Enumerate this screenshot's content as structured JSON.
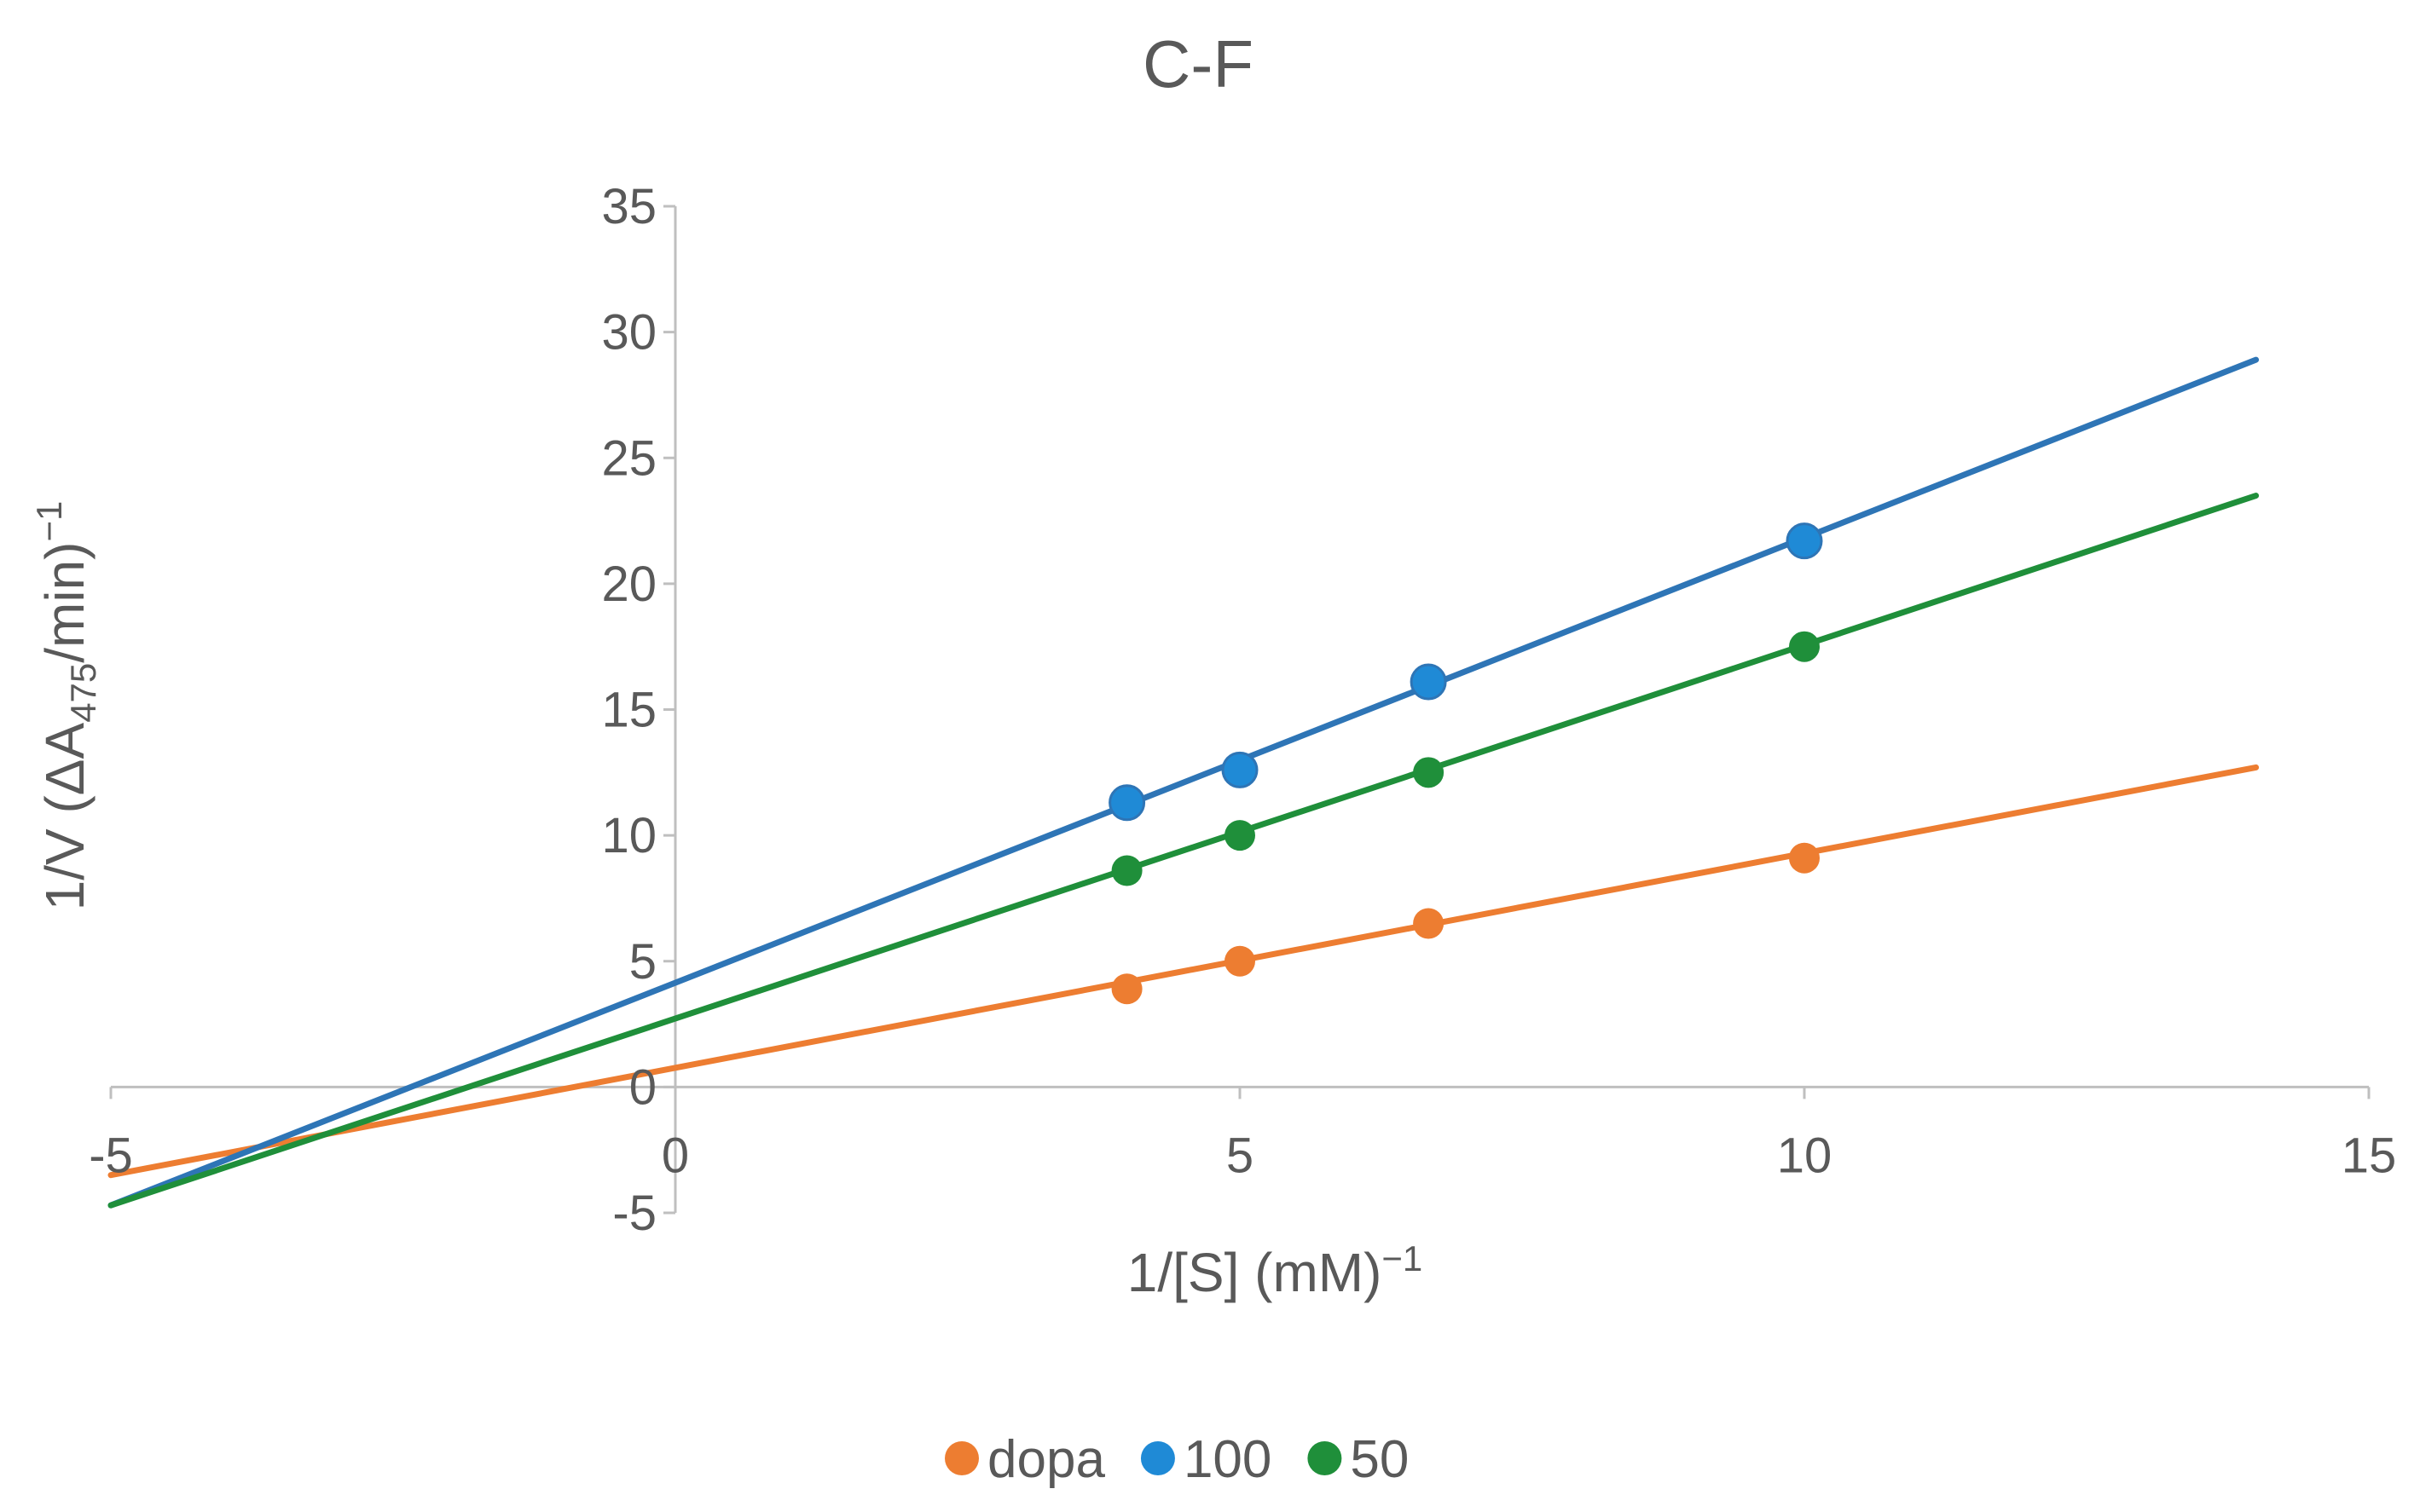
{
  "chart_data": {
    "type": "scatter",
    "title": "C-F",
    "xlabel": "1/[S]  (mM)",
    "xlabel_sup": "−1",
    "ylabel_pre": "1/V (ΔA",
    "ylabel_sub": "475",
    "ylabel_post": "/min)",
    "ylabel_sup": "−1",
    "xlim": [
      -5,
      15
    ],
    "ylim": [
      -5,
      35
    ],
    "xticks": [
      "-5",
      "0",
      "5",
      "10",
      "15"
    ],
    "yticks": [
      "-5",
      "0",
      "5",
      "10",
      "15",
      "20",
      "25",
      "30",
      "35"
    ],
    "grid": false,
    "legend_position": "bottom",
    "series": [
      {
        "name": "dopa",
        "color": "#ED7D31",
        "points": [
          [
            4,
            3.9
          ],
          [
            5,
            5.0
          ],
          [
            6.67,
            6.5
          ],
          [
            10,
            9.1
          ]
        ],
        "trendline": {
          "x": [
            -5,
            14
          ],
          "y": [
            -3.5,
            12.7
          ]
        }
      },
      {
        "name": "100",
        "color": "#2E75B6",
        "marker_color": "#1F8AD6",
        "points": [
          [
            4,
            11.3
          ],
          [
            5,
            12.6
          ],
          [
            6.67,
            16.1
          ],
          [
            10,
            21.7
          ]
        ],
        "trendline": {
          "x": [
            -5,
            14
          ],
          "y": [
            -4.7,
            28.9
          ]
        }
      },
      {
        "name": "50",
        "color": "#1F8F3A",
        "points": [
          [
            4,
            8.6
          ],
          [
            5,
            10.0
          ],
          [
            6.67,
            12.5
          ],
          [
            10,
            17.5
          ]
        ],
        "trendline": {
          "x": [
            -5,
            14
          ],
          "y": [
            -4.7,
            23.5
          ]
        }
      }
    ]
  }
}
